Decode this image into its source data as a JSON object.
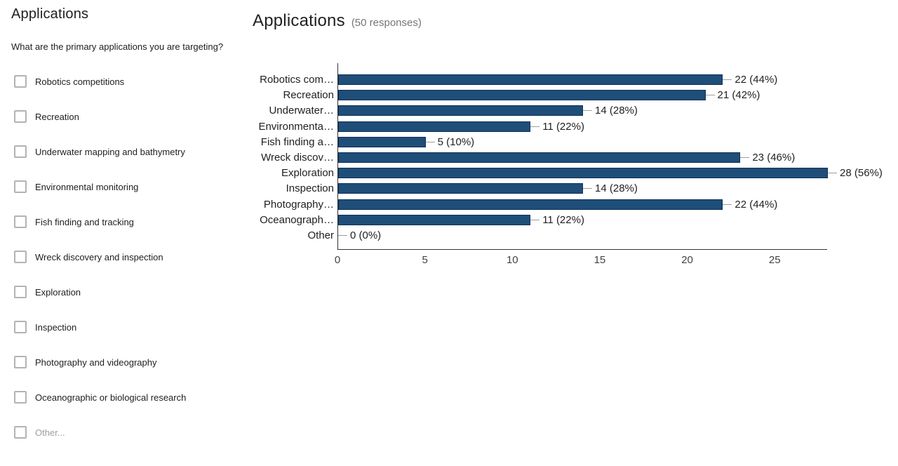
{
  "question_panel": {
    "title": "Applications",
    "question": "What are the primary applications you are targeting?",
    "options": [
      {
        "label": "Robotics competitions",
        "muted": false
      },
      {
        "label": "Recreation",
        "muted": false
      },
      {
        "label": "Underwater mapping and bathymetry",
        "muted": false
      },
      {
        "label": "Environmental monitoring",
        "muted": false
      },
      {
        "label": "Fish finding and tracking",
        "muted": false
      },
      {
        "label": "Wreck discovery and inspection",
        "muted": false
      },
      {
        "label": "Exploration",
        "muted": false
      },
      {
        "label": "Inspection",
        "muted": false
      },
      {
        "label": "Photography and videography",
        "muted": false
      },
      {
        "label": "Oceanographic or biological research",
        "muted": false
      },
      {
        "label": "Other...",
        "muted": true
      }
    ]
  },
  "chart_panel": {
    "title": "Applications",
    "responses_note": "(50 responses)"
  },
  "chart_data": {
    "type": "bar",
    "orientation": "horizontal",
    "title": "Applications",
    "subtitle": "(50 responses)",
    "categories": [
      "Robotics com…",
      "Recreation",
      "Underwater…",
      "Environmenta…",
      "Fish finding a…",
      "Wreck discov…",
      "Exploration",
      "Inspection",
      "Photography…",
      "Oceanograph…",
      "Other"
    ],
    "values": [
      22,
      21,
      14,
      11,
      5,
      23,
      28,
      14,
      22,
      11,
      0
    ],
    "value_labels": [
      "22 (44%)",
      "21 (42%)",
      "14 (28%)",
      "11 (22%)",
      "5 (10%)",
      "23 (46%)",
      "28 (56%)",
      "14 (28%)",
      "22 (44%)",
      "11 (22%)",
      "0 (0%)"
    ],
    "xlim": [
      0,
      28
    ],
    "x_ticks": [
      0,
      5,
      10,
      15,
      20,
      25
    ],
    "bar_color": "#1f4e79",
    "bar_border_color": "#0d3057",
    "grid": false,
    "legend": "none"
  }
}
